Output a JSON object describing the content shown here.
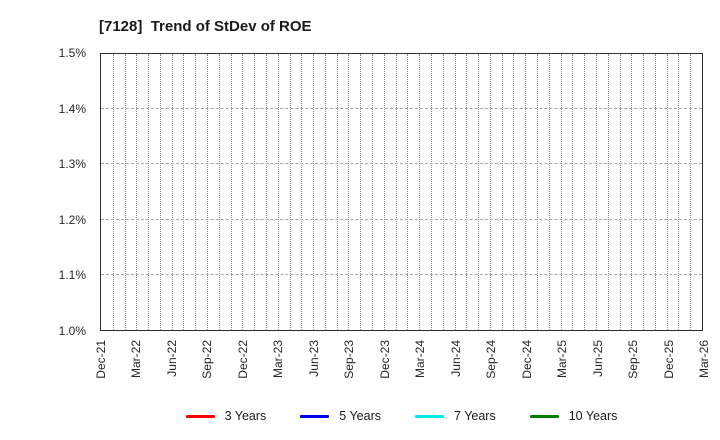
{
  "title": "[7128]  Trend of StDev of ROE",
  "chart_data": {
    "type": "line",
    "title": "[7128] Trend of StDev of ROE",
    "x_labels": [
      "Dec-21",
      "Mar-22",
      "Jun-22",
      "Sep-22",
      "Dec-22",
      "Mar-23",
      "Jun-23",
      "Sep-23",
      "Dec-23",
      "Mar-24",
      "Jun-24",
      "Sep-24",
      "Dec-24",
      "Mar-25",
      "Jun-25",
      "Sep-25",
      "Dec-25",
      "Mar-26"
    ],
    "y_ticks": [
      "1.0%",
      "1.1%",
      "1.2%",
      "1.3%",
      "1.4%",
      "1.5%"
    ],
    "ylim": [
      1.0,
      1.5
    ],
    "xlabel": "",
    "ylabel": "",
    "grid": true,
    "months_span": 51,
    "legend_position": "bottom",
    "series": [
      {
        "name": "3 Years",
        "color": "#ff0000",
        "values": []
      },
      {
        "name": "5 Years",
        "color": "#0000ee",
        "values": []
      },
      {
        "name": "7 Years",
        "color": "#00e5ee",
        "values": []
      },
      {
        "name": "10 Years",
        "color": "#007d00",
        "values": []
      }
    ]
  }
}
